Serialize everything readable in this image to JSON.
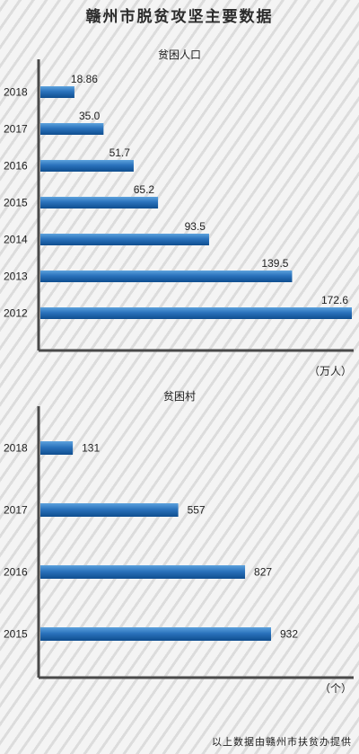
{
  "title": "赣州市脱贫攻坚主要数据",
  "colors": {
    "bar_top": "#5da2dd",
    "bar_mid": "#2a72bc",
    "bar_bottom": "#0f4e8f",
    "axis": "#4a4a4a"
  },
  "chart_data": [
    {
      "type": "bar",
      "orientation": "horizontal",
      "title": "贫困人口",
      "unit": "（万人）",
      "categories": [
        "2018",
        "2017",
        "2016",
        "2015",
        "2014",
        "2013",
        "2012"
      ],
      "values": [
        18.86,
        35.0,
        51.7,
        65.2,
        93.5,
        139.5,
        172.6
      ],
      "value_labels": [
        "18.86",
        "35.0",
        "51.7",
        "65.2",
        "93.5",
        "139.5",
        "172.6"
      ],
      "xlim": [
        0,
        172.6
      ],
      "grid": false,
      "legend": "none"
    },
    {
      "type": "bar",
      "orientation": "horizontal",
      "title": "贫困村",
      "unit": "（个）",
      "categories": [
        "2018",
        "2017",
        "2016",
        "2015"
      ],
      "values": [
        131,
        557,
        827,
        932
      ],
      "value_labels": [
        "131",
        "557",
        "827",
        "932"
      ],
      "xlim": [
        0,
        932
      ],
      "grid": false,
      "legend": "none"
    }
  ],
  "source": "以上数据由赣州市扶贫办提供"
}
